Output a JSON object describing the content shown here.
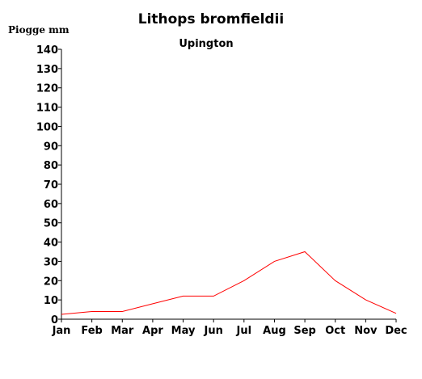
{
  "chart_data": {
    "type": "line",
    "title": "Lithops bromfieldii",
    "subtitle": "Upington",
    "ylabel": "Piogge mm",
    "xlabel": "",
    "categories": [
      "Jan",
      "Feb",
      "Mar",
      "Apr",
      "May",
      "Jun",
      "Jul",
      "Aug",
      "Sep",
      "Oct",
      "Nov",
      "Dec"
    ],
    "series": [
      {
        "values": [
          2.5,
          4,
          4,
          8,
          12,
          12,
          20,
          30,
          35,
          20,
          10,
          3
        ],
        "color": "#ff0000"
      }
    ],
    "ylim": [
      0,
      140
    ],
    "yticks": [
      "0",
      "10",
      "20",
      "30",
      "40",
      "50",
      "60",
      "70",
      "80",
      "90",
      "100",
      "110",
      "120",
      "130",
      "140"
    ],
    "grid": false,
    "legend": "none"
  }
}
